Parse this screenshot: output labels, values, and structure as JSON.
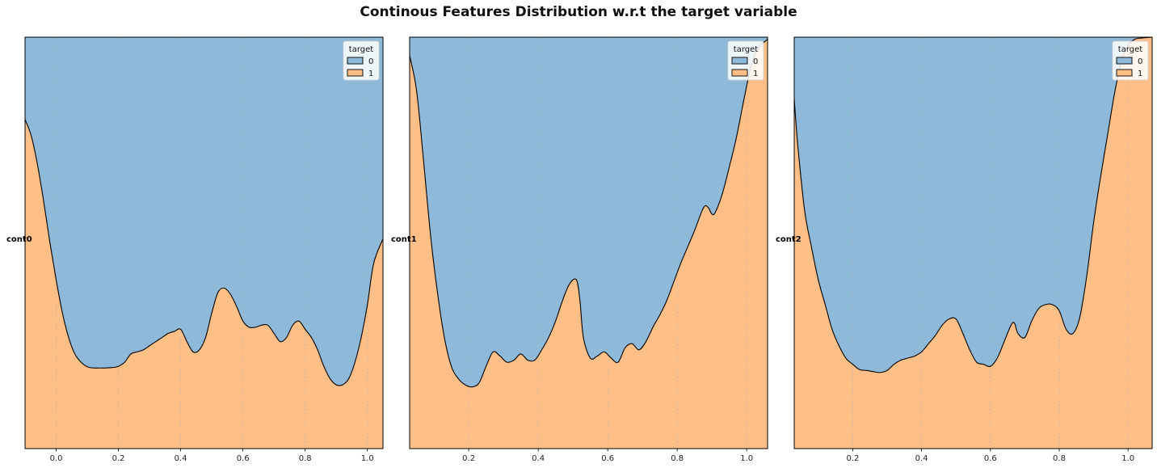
{
  "suptitle": "Continous Features Distribution w.r.t the target variable",
  "colors": {
    "class0": "#8fb9d8",
    "class1": "#ffbf87",
    "grid": "#b0b0b0",
    "edge": "#000000"
  },
  "chart_data": [
    {
      "type": "area",
      "stacking": "fill",
      "ylabel": "cont0",
      "legend": {
        "title": "target",
        "entries": [
          "0",
          "1"
        ],
        "placement": "top-right"
      },
      "xlim": [
        -0.1,
        1.05
      ],
      "ylim": [
        0,
        1
      ],
      "xticks": [
        0.0,
        0.2,
        0.4,
        0.6,
        0.8,
        1.0
      ],
      "xtick_labels": [
        "0.0",
        "0.2",
        "0.4",
        "0.6",
        "0.8",
        "1.0"
      ],
      "grid_x": true,
      "x": [
        -0.1,
        -0.08,
        -0.06,
        -0.04,
        -0.02,
        0.0,
        0.02,
        0.04,
        0.06,
        0.08,
        0.1,
        0.12,
        0.14,
        0.16,
        0.18,
        0.2,
        0.22,
        0.24,
        0.26,
        0.28,
        0.3,
        0.32,
        0.34,
        0.36,
        0.38,
        0.4,
        0.42,
        0.44,
        0.46,
        0.48,
        0.5,
        0.52,
        0.54,
        0.56,
        0.58,
        0.6,
        0.62,
        0.64,
        0.66,
        0.68,
        0.7,
        0.72,
        0.74,
        0.76,
        0.78,
        0.8,
        0.82,
        0.84,
        0.86,
        0.88,
        0.9,
        0.92,
        0.94,
        0.96,
        0.98,
        1.0,
        1.02,
        1.05
      ],
      "series": [
        {
          "name": "1",
          "values": [
            0.8,
            0.76,
            0.69,
            0.6,
            0.5,
            0.41,
            0.33,
            0.27,
            0.23,
            0.21,
            0.199,
            0.196,
            0.196,
            0.196,
            0.197,
            0.2,
            0.21,
            0.23,
            0.235,
            0.24,
            0.25,
            0.26,
            0.27,
            0.28,
            0.285,
            0.29,
            0.26,
            0.235,
            0.24,
            0.27,
            0.33,
            0.38,
            0.39,
            0.375,
            0.345,
            0.31,
            0.295,
            0.295,
            0.3,
            0.3,
            0.28,
            0.26,
            0.27,
            0.3,
            0.31,
            0.29,
            0.27,
            0.24,
            0.2,
            0.17,
            0.155,
            0.155,
            0.17,
            0.21,
            0.27,
            0.35,
            0.45,
            0.51
          ]
        }
      ]
    },
    {
      "type": "area",
      "stacking": "fill",
      "ylabel": "cont1",
      "legend": {
        "title": "target",
        "entries": [
          "0",
          "1"
        ],
        "placement": "top-right"
      },
      "xlim": [
        0.03,
        1.06
      ],
      "ylim": [
        0,
        1
      ],
      "xticks": [
        0.2,
        0.4,
        0.6,
        0.8,
        1.0
      ],
      "xtick_labels": [
        "0.2",
        "0.4",
        "0.6",
        "0.8",
        "1.0"
      ],
      "grid_x": true,
      "x": [
        0.03,
        0.05,
        0.07,
        0.09,
        0.11,
        0.13,
        0.15,
        0.17,
        0.19,
        0.21,
        0.23,
        0.25,
        0.27,
        0.29,
        0.31,
        0.33,
        0.35,
        0.37,
        0.39,
        0.41,
        0.43,
        0.45,
        0.47,
        0.49,
        0.51,
        0.52,
        0.53,
        0.55,
        0.57,
        0.59,
        0.61,
        0.63,
        0.65,
        0.67,
        0.69,
        0.71,
        0.73,
        0.75,
        0.77,
        0.79,
        0.81,
        0.83,
        0.85,
        0.87,
        0.88,
        0.89,
        0.9,
        0.91,
        0.93,
        0.95,
        0.97,
        0.99,
        1.01,
        1.03,
        1.06
      ],
      "series": [
        {
          "name": "1",
          "values": [
            0.955,
            0.87,
            0.7,
            0.52,
            0.38,
            0.27,
            0.2,
            0.17,
            0.155,
            0.15,
            0.16,
            0.2,
            0.235,
            0.225,
            0.21,
            0.215,
            0.23,
            0.215,
            0.215,
            0.24,
            0.27,
            0.31,
            0.36,
            0.4,
            0.41,
            0.36,
            0.27,
            0.22,
            0.225,
            0.235,
            0.22,
            0.21,
            0.245,
            0.255,
            0.24,
            0.26,
            0.295,
            0.325,
            0.36,
            0.405,
            0.45,
            0.49,
            0.53,
            0.575,
            0.59,
            0.585,
            0.57,
            0.575,
            0.62,
            0.685,
            0.755,
            0.84,
            0.92,
            0.97,
            0.995
          ]
        }
      ]
    },
    {
      "type": "area",
      "stacking": "fill",
      "ylabel": "cont2",
      "legend": {
        "title": "target",
        "entries": [
          "0",
          "1"
        ],
        "placement": "top-right"
      },
      "xlim": [
        0.03,
        1.07
      ],
      "ylim": [
        0,
        1
      ],
      "xticks": [
        0.2,
        0.4,
        0.6,
        0.8,
        1.0
      ],
      "xtick_labels": [
        "0.2",
        "0.4",
        "0.6",
        "0.8",
        "1.0"
      ],
      "grid_x": true,
      "x": [
        0.03,
        0.04,
        0.06,
        0.08,
        0.1,
        0.12,
        0.14,
        0.16,
        0.18,
        0.2,
        0.22,
        0.24,
        0.26,
        0.28,
        0.3,
        0.32,
        0.34,
        0.36,
        0.38,
        0.4,
        0.42,
        0.44,
        0.46,
        0.48,
        0.5,
        0.52,
        0.54,
        0.56,
        0.58,
        0.6,
        0.62,
        0.64,
        0.66,
        0.67,
        0.68,
        0.7,
        0.72,
        0.74,
        0.76,
        0.78,
        0.8,
        0.82,
        0.84,
        0.86,
        0.88,
        0.9,
        0.92,
        0.94,
        0.96,
        0.98,
        1.0,
        1.02,
        1.04,
        1.07
      ],
      "series": [
        {
          "name": "1",
          "values": [
            0.85,
            0.74,
            0.58,
            0.49,
            0.41,
            0.35,
            0.29,
            0.25,
            0.22,
            0.205,
            0.192,
            0.19,
            0.187,
            0.185,
            0.19,
            0.205,
            0.215,
            0.22,
            0.225,
            0.235,
            0.255,
            0.275,
            0.3,
            0.315,
            0.315,
            0.28,
            0.24,
            0.21,
            0.205,
            0.2,
            0.22,
            0.26,
            0.3,
            0.305,
            0.28,
            0.27,
            0.31,
            0.34,
            0.35,
            0.35,
            0.335,
            0.29,
            0.28,
            0.32,
            0.42,
            0.55,
            0.66,
            0.76,
            0.86,
            0.94,
            0.98,
            0.995,
            0.998,
            1.0
          ]
        }
      ]
    }
  ]
}
